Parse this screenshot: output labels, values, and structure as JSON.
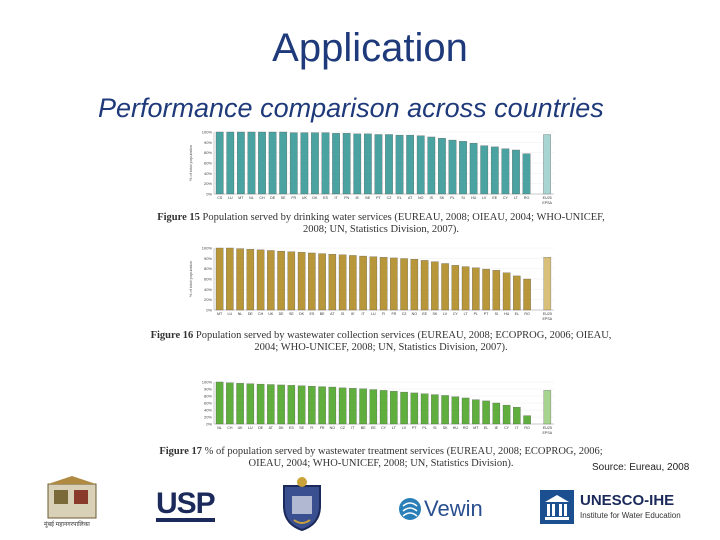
{
  "title": "Application",
  "subtitle": "Performance comparison across countries",
  "source": "Source: Eureau, 2008",
  "figures": [
    {
      "caption_lead": "Figure 15",
      "caption_rest": "Population served by drinking water services (EUREAU, 2008; OIEAU, 2004; WHO-UNICEF, 2008; UN, Statistics Division, 2007).",
      "ylabel": "% of total population",
      "bar_color": "#4aa3a0",
      "last_bar_color": "#a8d4d2",
      "yticks": [
        "100%",
        "90%",
        "80%",
        "60%",
        "40%",
        "20%",
        "0%"
      ],
      "categories": [
        "CS",
        "LU",
        "MT",
        "NL",
        "CH",
        "DE",
        "SE",
        "FR",
        "UK",
        "DK",
        "ES",
        "IT",
        "FN",
        "IE",
        "BE",
        "PT",
        "CZ",
        "EL",
        "AT",
        "NO",
        "IS",
        "SK",
        "PL",
        "SI",
        "HU",
        "LV",
        "EE",
        "CY",
        "LT",
        "RO",
        "EU25"
      ],
      "extra_label": "EPSA",
      "values": [
        100,
        100,
        100,
        100,
        100,
        100,
        100,
        99,
        99,
        99,
        99,
        98,
        98,
        97,
        97,
        96,
        96,
        95,
        95,
        94,
        92,
        90,
        87,
        85,
        82,
        78,
        76,
        73,
        71,
        65,
        96
      ]
    },
    {
      "caption_lead": "Figure 16",
      "caption_rest": "Population served by wastewater collection services (EUREAU, 2008; ECOPROG, 2006; OIEAU, 2004; WHO-UNICEF, 2008; UN, Statistics Division, 2007).",
      "ylabel": "% of total population",
      "bar_color": "#b8963a",
      "last_bar_color": "#d9c07a",
      "yticks": [
        "100%",
        "90%",
        "80%",
        "60%",
        "40%",
        "20%",
        "0%"
      ],
      "categories": [
        "MT",
        "LU",
        "NL",
        "DE",
        "CH",
        "UK",
        "DE",
        "SE",
        "DK",
        "ES",
        "BE",
        "AT",
        "IS",
        "IE",
        "IT",
        "LU",
        "FI",
        "FR",
        "CZ",
        "NO",
        "EE",
        "SK",
        "LV",
        "CY",
        "LT",
        "PL",
        "PT",
        "SI",
        "HU",
        "EL",
        "RO",
        "EU25"
      ],
      "extra_label": "EPSA",
      "values": [
        100,
        100,
        99,
        98,
        97,
        96,
        95,
        94,
        93,
        92,
        91,
        90,
        89,
        88,
        87,
        86,
        85,
        84,
        83,
        82,
        80,
        78,
        75,
        72,
        70,
        68,
        66,
        64,
        60,
        55,
        50,
        85
      ]
    },
    {
      "caption_lead": "Figure 17",
      "caption_rest": "% of population served by wastewater treatment services (EUREAU, 2008; ECOPROG, 2006; OIEAU, 2004; WHO-UNICEF, 2008; UN, Statistics Division).",
      "ylabel": "",
      "bar_color": "#5fae3e",
      "last_bar_color": "#a6d48e",
      "yticks": [
        "100%",
        "90%",
        "80%",
        "60%",
        "40%",
        "20%",
        "0%"
      ],
      "categories": [
        "NL",
        "CH",
        "UK",
        "LU",
        "DE",
        "AT",
        "DK",
        "ES",
        "SE",
        "FI",
        "FR",
        "NO",
        "CZ",
        "IT",
        "BE",
        "EE",
        "CY",
        "LT",
        "LV",
        "PT",
        "PL",
        "SI",
        "SK",
        "HU",
        "RO",
        "MT",
        "EL",
        "IE",
        "CY",
        "IT",
        "RO",
        "EU25"
      ],
      "extra_label": "EPSA",
      "values": [
        100,
        98,
        97,
        96,
        95,
        94,
        93,
        92,
        91,
        90,
        89,
        88,
        86,
        85,
        84,
        82,
        80,
        78,
        76,
        74,
        72,
        70,
        68,
        65,
        62,
        58,
        55,
        50,
        45,
        40,
        20,
        80
      ]
    }
  ],
  "logos": [
    {
      "name": "Municipal emblem",
      "text": "मुंबई महानगरपालिका"
    },
    {
      "name": "USP",
      "text": "USP"
    },
    {
      "name": "Crest"
    },
    {
      "name": "Vewin",
      "text": "Vewin"
    },
    {
      "name": "UNESCO-IHE",
      "text": "UNESCO-IHE",
      "subtext": "Institute for Water Education"
    }
  ]
}
